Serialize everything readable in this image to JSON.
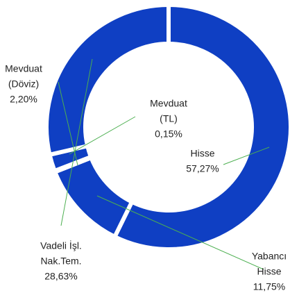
{
  "chart_data": {
    "type": "donut",
    "categories": [
      [
        "Hisse"
      ],
      [
        "Yabancı",
        "Hisse"
      ],
      [
        "Mevduat",
        "(TL)"
      ],
      [
        "Mevduat",
        "(Döviz)"
      ],
      [
        "Vadeli İşl.",
        "Nak.Tem."
      ]
    ],
    "values": [
      57.27,
      11.75,
      0.15,
      2.2,
      28.63
    ],
    "value_labels": [
      "57,27%",
      "11,75%",
      "0,15%",
      "2,20%",
      "28,63%"
    ],
    "color": "#0f3fc3"
  }
}
